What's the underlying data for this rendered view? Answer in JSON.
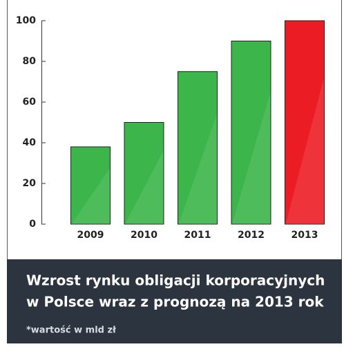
{
  "chart_data": {
    "type": "bar",
    "title": [
      "Wzrost rynku obligacji korporacyjnych",
      "w Polsce wraz z prognozą na 2013 rok"
    ],
    "footnote": "*wartość w mld zł",
    "categories": [
      "2009",
      "2010",
      "2011",
      "2012",
      "2013"
    ],
    "values": [
      38,
      50,
      75,
      90,
      100
    ],
    "colors": [
      "#3cb54a",
      "#3cb54a",
      "#3cb54a",
      "#3cb54a",
      "#ec1c24"
    ],
    "ylim": [
      0,
      100
    ],
    "yticks": [
      0,
      20,
      40,
      60,
      80,
      100
    ],
    "grid": false
  }
}
